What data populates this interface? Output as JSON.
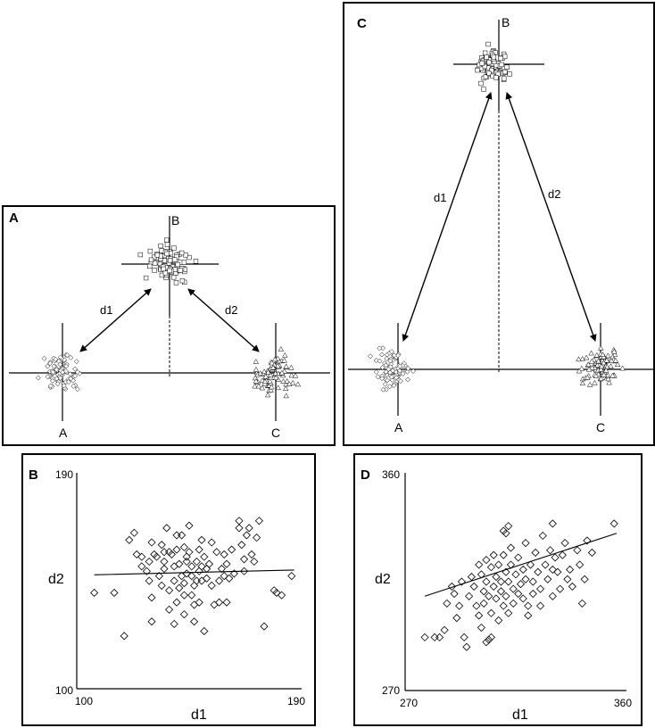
{
  "panels": {
    "A": {
      "letter": "A",
      "cluster_labels": [
        "A",
        "B",
        "C"
      ],
      "distance_labels": [
        "d1",
        "d2"
      ]
    },
    "C": {
      "letter": "C",
      "cluster_labels": [
        "A",
        "B",
        "C"
      ],
      "distance_labels": [
        "d1",
        "d2"
      ]
    },
    "B": {
      "letter": "B",
      "xlabel": "d1",
      "ylabel": "d2"
    },
    "D": {
      "letter": "D",
      "xlabel": "d1",
      "ylabel": "d2"
    }
  },
  "chart_data": [
    {
      "panel": "B",
      "type": "scatter",
      "xlabel": "d1",
      "ylabel": "d2",
      "xlim": [
        100,
        190
      ],
      "ylim": [
        100,
        190
      ],
      "x_ticks": [
        "100",
        "190"
      ],
      "y_ticks": [
        "100",
        "190"
      ],
      "marker": "diamond",
      "trendline": {
        "x": [
          107,
          187
        ],
        "y": [
          147.5,
          149.5
        ]
      },
      "points": [
        [
          107,
          140
        ],
        [
          115,
          140
        ],
        [
          121,
          162
        ],
        [
          123,
          165
        ],
        [
          124,
          156
        ],
        [
          126,
          155
        ],
        [
          126,
          151
        ],
        [
          128,
          149
        ],
        [
          129,
          145
        ],
        [
          129,
          153
        ],
        [
          130,
          161
        ],
        [
          130,
          138
        ],
        [
          131,
          156
        ],
        [
          132,
          155
        ],
        [
          133,
          147
        ],
        [
          134,
          160
        ],
        [
          134,
          143
        ],
        [
          135,
          150
        ],
        [
          135,
          153
        ],
        [
          135,
          157
        ],
        [
          136,
          167
        ],
        [
          137,
          157
        ],
        [
          137,
          141
        ],
        [
          137,
          133
        ],
        [
          138,
          156
        ],
        [
          139,
          151
        ],
        [
          139,
          145
        ],
        [
          140,
          164
        ],
        [
          140,
          158
        ],
        [
          140,
          136
        ],
        [
          141,
          142
        ],
        [
          141,
          152
        ],
        [
          142,
          164
        ],
        [
          142,
          147
        ],
        [
          143,
          159
        ],
        [
          143,
          144
        ],
        [
          143,
          139
        ],
        [
          143,
          131
        ],
        [
          144,
          155
        ],
        [
          144,
          153
        ],
        [
          144,
          148
        ],
        [
          145,
          157
        ],
        [
          145,
          168
        ],
        [
          146,
          151
        ],
        [
          146,
          147
        ],
        [
          146,
          139
        ],
        [
          147,
          143
        ],
        [
          147,
          135
        ],
        [
          148,
          153
        ],
        [
          148,
          145
        ],
        [
          149,
          158
        ],
        [
          149,
          149
        ],
        [
          149,
          136
        ],
        [
          150,
          162
        ],
        [
          150,
          151
        ],
        [
          150,
          145
        ],
        [
          151,
          155
        ],
        [
          152,
          150
        ],
        [
          152,
          146
        ],
        [
          153,
          152
        ],
        [
          154,
          143
        ],
        [
          154,
          161
        ],
        [
          155,
          135
        ],
        [
          156,
          157
        ],
        [
          157,
          145
        ],
        [
          157,
          136
        ],
        [
          158,
          150
        ],
        [
          159,
          156
        ],
        [
          159,
          147
        ],
        [
          160,
          152
        ],
        [
          160,
          136
        ],
        [
          161,
          146
        ],
        [
          162,
          158
        ],
        [
          163,
          148
        ],
        [
          165,
          170
        ],
        [
          165,
          167
        ],
        [
          166,
          160
        ],
        [
          167,
          154
        ],
        [
          167,
          149
        ],
        [
          168,
          164
        ],
        [
          169,
          167
        ],
        [
          170,
          156
        ],
        [
          171,
          153
        ],
        [
          172,
          163
        ],
        [
          173,
          170
        ],
        [
          175,
          126
        ],
        [
          179,
          141
        ],
        [
          180,
          140
        ],
        [
          182,
          139
        ],
        [
          186,
          147
        ],
        [
          119,
          122
        ],
        [
          130,
          128
        ],
        [
          139,
          127
        ],
        [
          151,
          124
        ],
        [
          147,
          128
        ]
      ]
    },
    {
      "panel": "D",
      "type": "scatter",
      "xlabel": "d1",
      "ylabel": "d2",
      "xlim": [
        270,
        360
      ],
      "ylim": [
        270,
        360
      ],
      "x_ticks": [
        "270",
        "360"
      ],
      "y_ticks": [
        "270",
        "360"
      ],
      "marker": "diamond",
      "trendline": {
        "x": [
          278,
          356
        ],
        "y": [
          309,
          335
        ]
      },
      "points": [
        [
          278,
          292
        ],
        [
          282,
          292
        ],
        [
          284,
          292
        ],
        [
          286,
          295
        ],
        [
          287,
          306
        ],
        [
          289,
          313
        ],
        [
          290,
          310
        ],
        [
          291,
          300
        ],
        [
          292,
          305
        ],
        [
          293,
          315
        ],
        [
          294,
          292
        ],
        [
          295,
          288
        ],
        [
          296,
          309
        ],
        [
          297,
          317
        ],
        [
          298,
          313
        ],
        [
          299,
          305
        ],
        [
          300,
          322
        ],
        [
          300,
          301
        ],
        [
          301,
          318
        ],
        [
          301,
          296
        ],
        [
          302,
          311
        ],
        [
          302,
          306
        ],
        [
          303,
          324
        ],
        [
          303,
          315
        ],
        [
          303,
          290
        ],
        [
          304,
          309
        ],
        [
          305,
          321
        ],
        [
          305,
          302
        ],
        [
          305,
          292
        ],
        [
          306,
          313
        ],
        [
          306,
          326
        ],
        [
          307,
          317
        ],
        [
          307,
          308
        ],
        [
          308,
          322
        ],
        [
          308,
          299
        ],
        [
          309,
          315
        ],
        [
          309,
          311
        ],
        [
          310,
          326
        ],
        [
          310,
          305
        ],
        [
          311,
          319
        ],
        [
          311,
          309
        ],
        [
          312,
          315
        ],
        [
          312,
          302
        ],
        [
          313,
          322
        ],
        [
          313,
          329
        ],
        [
          314,
          312
        ],
        [
          314,
          306
        ],
        [
          315,
          318
        ],
        [
          316,
          310
        ],
        [
          316,
          325
        ],
        [
          317,
          314
        ],
        [
          318,
          308
        ],
        [
          318,
          320
        ],
        [
          319,
          331
        ],
        [
          319,
          316
        ],
        [
          320,
          305
        ],
        [
          320,
          301
        ],
        [
          321,
          322
        ],
        [
          322,
          315
        ],
        [
          322,
          310
        ],
        [
          323,
          327
        ],
        [
          324,
          319
        ],
        [
          325,
          305
        ],
        [
          325,
          312
        ],
        [
          326,
          334
        ],
        [
          327,
          322
        ],
        [
          328,
          316
        ],
        [
          329,
          328
        ],
        [
          330,
          320
        ],
        [
          330,
          309
        ],
        [
          331,
          325
        ],
        [
          332,
          319
        ],
        [
          333,
          312
        ],
        [
          334,
          326
        ],
        [
          335,
          331
        ],
        [
          336,
          316
        ],
        [
          337,
          320
        ],
        [
          338,
          313
        ],
        [
          340,
          328
        ],
        [
          341,
          322
        ],
        [
          342,
          306
        ],
        [
          343,
          316
        ],
        [
          344,
          332
        ],
        [
          346,
          327
        ],
        [
          355,
          339
        ],
        [
          310,
          336
        ],
        [
          311,
          335
        ],
        [
          312,
          338
        ],
        [
          330,
          339
        ],
        [
          304,
          291
        ]
      ]
    }
  ]
}
